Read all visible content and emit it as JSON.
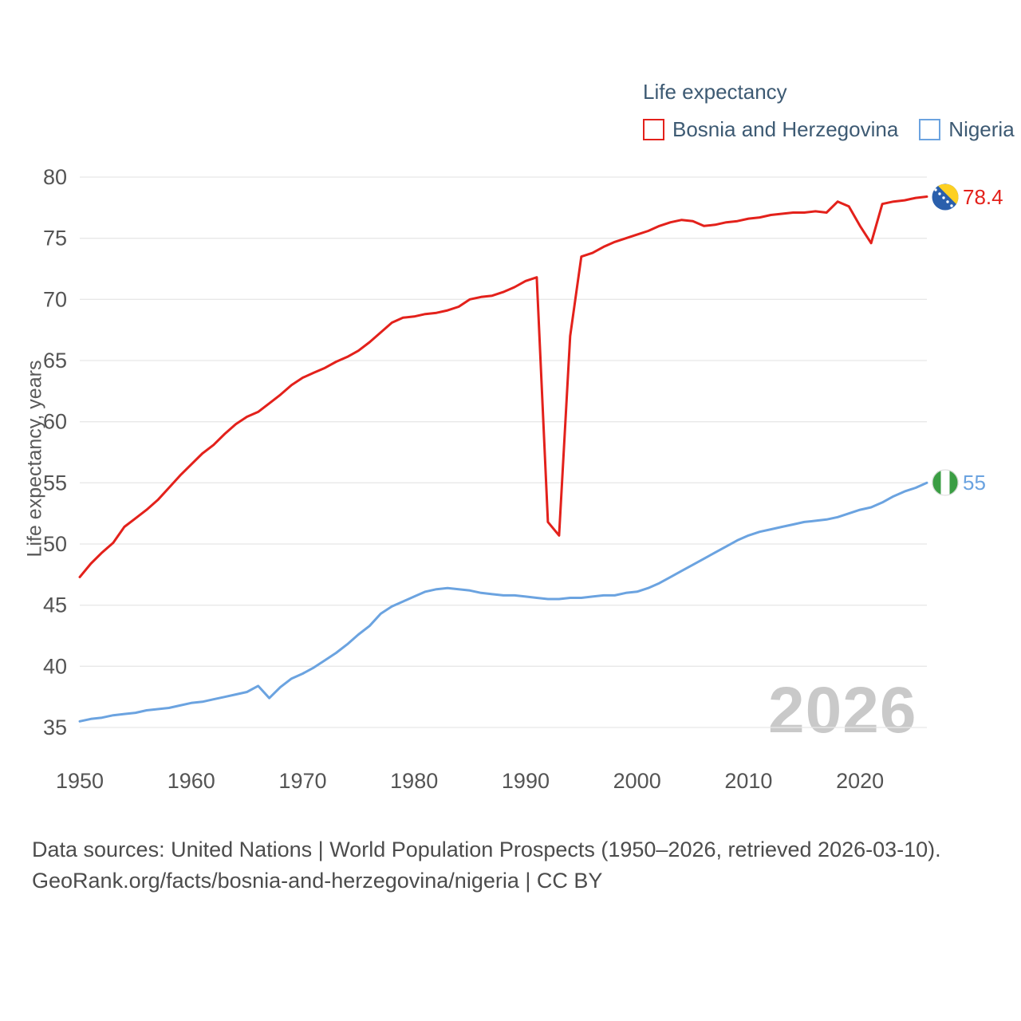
{
  "legend": {
    "title": "Life expectancy",
    "items": [
      {
        "label": "Bosnia and Herzegovina",
        "color": "#e3211b"
      },
      {
        "label": "Nigeria",
        "color": "#6ba3e0"
      }
    ]
  },
  "y_axis_label": "Life expectancy, years",
  "watermark": "2026",
  "end_labels": {
    "bosnia": {
      "value": "78.4"
    },
    "nigeria": {
      "value": "55"
    }
  },
  "footer": {
    "line1": "Data sources: United Nations | World Population Prospects (1950–2026, retrieved 2026-03-10).",
    "line2": "GeoRank.org/facts/bosnia-and-herzegovina/nigeria | CC BY"
  },
  "chart_data": {
    "type": "line",
    "title": "Life expectancy",
    "ylabel": "Life expectancy, years",
    "xlabel": "",
    "grid": "horizontal",
    "legend_position": "top-right",
    "xlim": [
      1950,
      2026
    ],
    "ylim": [
      35,
      80
    ],
    "x_ticks": [
      1950,
      1960,
      1970,
      1980,
      1990,
      2000,
      2010,
      2020
    ],
    "y_ticks": [
      35,
      40,
      45,
      50,
      55,
      60,
      65,
      70,
      75,
      80
    ],
    "x": [
      1950,
      1951,
      1952,
      1953,
      1954,
      1955,
      1956,
      1957,
      1958,
      1959,
      1960,
      1961,
      1962,
      1963,
      1964,
      1965,
      1966,
      1967,
      1968,
      1969,
      1970,
      1971,
      1972,
      1973,
      1974,
      1975,
      1976,
      1977,
      1978,
      1979,
      1980,
      1981,
      1982,
      1983,
      1984,
      1985,
      1986,
      1987,
      1988,
      1989,
      1990,
      1991,
      1992,
      1993,
      1994,
      1995,
      1996,
      1997,
      1998,
      1999,
      2000,
      2001,
      2002,
      2003,
      2004,
      2005,
      2006,
      2007,
      2008,
      2009,
      2010,
      2011,
      2012,
      2013,
      2014,
      2015,
      2016,
      2017,
      2018,
      2019,
      2020,
      2021,
      2022,
      2023,
      2024,
      2025,
      2026
    ],
    "series": [
      {
        "name": "Bosnia and Herzegovina",
        "color": "#e3211b",
        "end_label": 78.4,
        "values": [
          47.3,
          48.4,
          49.3,
          50.1,
          51.4,
          52.1,
          52.8,
          53.6,
          54.6,
          55.6,
          56.5,
          57.4,
          58.1,
          59.0,
          59.8,
          60.4,
          60.8,
          61.5,
          62.2,
          63.0,
          63.6,
          64.0,
          64.4,
          64.9,
          65.3,
          65.8,
          66.5,
          67.3,
          68.1,
          68.5,
          68.6,
          68.8,
          68.9,
          69.1,
          69.4,
          70.0,
          70.2,
          70.3,
          70.6,
          71.0,
          71.5,
          71.8,
          51.8,
          50.7,
          67.0,
          73.5,
          73.8,
          74.3,
          74.7,
          75.0,
          75.3,
          75.6,
          76.0,
          76.3,
          76.5,
          76.4,
          76.0,
          76.1,
          76.3,
          76.4,
          76.6,
          76.7,
          76.9,
          77.0,
          77.1,
          77.1,
          77.2,
          77.1,
          78.0,
          77.6,
          76.0,
          74.6,
          77.8,
          78.0,
          78.1,
          78.3,
          78.4
        ]
      },
      {
        "name": "Nigeria",
        "color": "#6ba3e0",
        "end_label": 55,
        "values": [
          35.5,
          35.7,
          35.8,
          36.0,
          36.1,
          36.2,
          36.4,
          36.5,
          36.6,
          36.8,
          37.0,
          37.1,
          37.3,
          37.5,
          37.7,
          37.9,
          38.4,
          37.4,
          38.3,
          39.0,
          39.4,
          39.9,
          40.5,
          41.1,
          41.8,
          42.6,
          43.3,
          44.3,
          44.9,
          45.3,
          45.7,
          46.1,
          46.3,
          46.4,
          46.3,
          46.2,
          46.0,
          45.9,
          45.8,
          45.8,
          45.7,
          45.6,
          45.5,
          45.5,
          45.6,
          45.6,
          45.7,
          45.8,
          45.8,
          46.0,
          46.1,
          46.4,
          46.8,
          47.3,
          47.8,
          48.3,
          48.8,
          49.3,
          49.8,
          50.3,
          50.7,
          51.0,
          51.2,
          51.4,
          51.6,
          51.8,
          51.9,
          52.0,
          52.2,
          52.5,
          52.8,
          53.0,
          53.4,
          53.9,
          54.3,
          54.6,
          55.0
        ]
      }
    ]
  }
}
